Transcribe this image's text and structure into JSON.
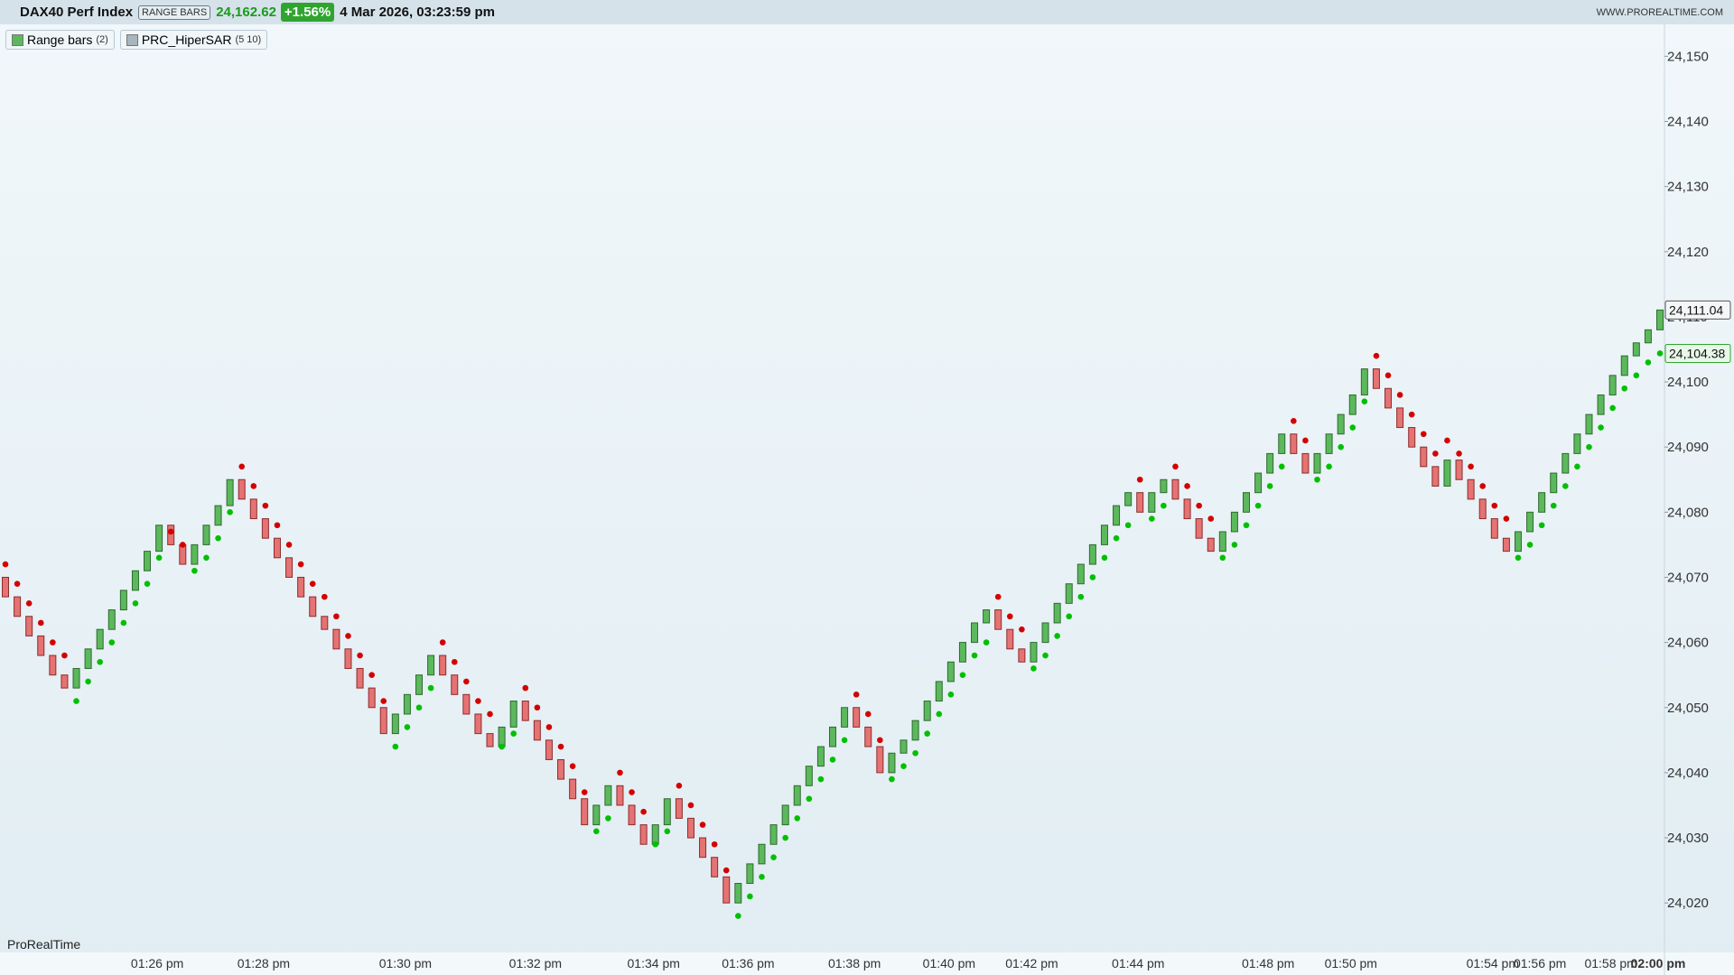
{
  "chart_data": {
    "type": "candlestick",
    "title": "DAX40 Perf Index",
    "chart_mode": "RANGE BARS",
    "last": {
      "value": 24162.62,
      "label": "24,162.62"
    },
    "change": {
      "value": 1.56,
      "label": "+1.56%"
    },
    "datetime": "4 Mar 2026, 03:23:59 pm",
    "source": "WWW.PROREALTIME.COM",
    "branding": "ProRealTime",
    "ylim": [
      24012.4,
      24154.9
    ],
    "yticks": [
      {
        "value": 24020,
        "label": "24,020"
      },
      {
        "value": 24030,
        "label": "24,030"
      },
      {
        "value": 24040,
        "label": "24,040"
      },
      {
        "value": 24050,
        "label": "24,050"
      },
      {
        "value": 24060,
        "label": "24,060"
      },
      {
        "value": 24070,
        "label": "24,070"
      },
      {
        "value": 24080,
        "label": "24,080"
      },
      {
        "value": 24090,
        "label": "24,090"
      },
      {
        "value": 24100,
        "label": "24,100"
      },
      {
        "value": 24110,
        "label": "24,110"
      },
      {
        "value": 24120,
        "label": "24,120"
      },
      {
        "value": 24130,
        "label": "24,130"
      },
      {
        "value": 24140,
        "label": "24,140"
      },
      {
        "value": 24150,
        "label": "24,150"
      }
    ],
    "categories": [
      null,
      null,
      null,
      null,
      null,
      null,
      null,
      null,
      null,
      null,
      null,
      null,
      null,
      "01:26 pm",
      null,
      null,
      null,
      null,
      null,
      null,
      null,
      null,
      "01:28 pm",
      null,
      null,
      null,
      null,
      null,
      null,
      null,
      null,
      null,
      null,
      null,
      "01:30 pm",
      null,
      null,
      null,
      null,
      null,
      null,
      null,
      null,
      null,
      null,
      "01:32 pm",
      null,
      null,
      null,
      null,
      null,
      null,
      null,
      null,
      null,
      "01:34 pm",
      null,
      null,
      null,
      null,
      null,
      null,
      null,
      "01:36 pm",
      null,
      null,
      null,
      null,
      null,
      null,
      null,
      null,
      "01:38 pm",
      null,
      null,
      null,
      null,
      null,
      null,
      null,
      "01:40 pm",
      null,
      null,
      null,
      null,
      null,
      null,
      "01:42 pm",
      null,
      null,
      null,
      null,
      null,
      null,
      null,
      null,
      "01:44 pm",
      null,
      null,
      null,
      null,
      null,
      null,
      null,
      null,
      null,
      null,
      "01:48 pm",
      null,
      null,
      null,
      null,
      null,
      null,
      "01:50 pm",
      null,
      null,
      null,
      null,
      null,
      null,
      null,
      null,
      null,
      null,
      null,
      "01:54 pm",
      null,
      null,
      null,
      "01:56 pm",
      null,
      null,
      null,
      null,
      null,
      "01:58 pm",
      null,
      null,
      null,
      "02:00 pm"
    ],
    "series": [
      {
        "name": "Range bars",
        "params": "(2)",
        "up_color": "#5cb85c",
        "down_color": "#e57373",
        "open": [
          24070,
          24067,
          24064,
          24061,
          24058,
          24055,
          24053,
          24056,
          24059,
          24062,
          24065,
          24068,
          24071,
          24074,
          24078,
          24075,
          24072,
          24075,
          24078,
          24081,
          24085,
          24082,
          24079,
          24076,
          24073,
          24070,
          24067,
          24064,
          24062,
          24059,
          24056,
          24053,
          24050,
          24046,
          24049,
          24052,
          24055,
          24058,
          24055,
          24052,
          24049,
          24046,
          24044,
          24047,
          24051,
          24048,
          24045,
          24042,
          24039,
          24036,
          24032,
          24035,
          24038,
          24035,
          24032,
          24029,
          24032,
          24036,
          24033,
          24030,
          24027,
          24024,
          24020,
          24023,
          24026,
          24029,
          24032,
          24035,
          24038,
          24041,
          24044,
          24047,
          24050,
          24047,
          24044,
          24040,
          24043,
          24045,
          24048,
          24051,
          24054,
          24057,
          24060,
          24063,
          24065,
          24062,
          24059,
          24057,
          24060,
          24063,
          24066,
          24069,
          24072,
          24075,
          24078,
          24081,
          24083,
          24080,
          24083,
          24085,
          24082,
          24079,
          24076,
          24074,
          24077,
          24080,
          24083,
          24086,
          24089,
          24092,
          24089,
          24086,
          24089,
          24092,
          24095,
          24098,
          24102,
          24099,
          24096,
          24093,
          24090,
          24087,
          24084,
          24088,
          24085,
          24082,
          24079,
          24076,
          24074,
          24077,
          24080,
          24083,
          24086,
          24089,
          24092,
          24095,
          24098,
          24101,
          24104,
          24106,
          24108
        ],
        "close": [
          24067,
          24064,
          24061,
          24058,
          24055,
          24053,
          24056,
          24059,
          24062,
          24065,
          24068,
          24071,
          24074,
          24078,
          24075,
          24072,
          24075,
          24078,
          24081,
          24085,
          24082,
          24079,
          24076,
          24073,
          24070,
          24067,
          24064,
          24062,
          24059,
          24056,
          24053,
          24050,
          24046,
          24049,
          24052,
          24055,
          24058,
          24055,
          24052,
          24049,
          24046,
          24044,
          24047,
          24051,
          24048,
          24045,
          24042,
          24039,
          24036,
          24032,
          24035,
          24038,
          24035,
          24032,
          24029,
          24032,
          24036,
          24033,
          24030,
          24027,
          24024,
          24020,
          24023,
          24026,
          24029,
          24032,
          24035,
          24038,
          24041,
          24044,
          24047,
          24050,
          24047,
          24044,
          24040,
          24043,
          24045,
          24048,
          24051,
          24054,
          24057,
          24060,
          24063,
          24065,
          24062,
          24059,
          24057,
          24060,
          24063,
          24066,
          24069,
          24072,
          24075,
          24078,
          24081,
          24083,
          24080,
          24083,
          24085,
          24082,
          24079,
          24076,
          24074,
          24077,
          24080,
          24083,
          24086,
          24089,
          24092,
          24089,
          24086,
          24089,
          24092,
          24095,
          24098,
          24102,
          24099,
          24096,
          24093,
          24090,
          24087,
          24084,
          24088,
          24085,
          24082,
          24079,
          24076,
          24074,
          24077,
          24080,
          24083,
          24086,
          24089,
          24092,
          24095,
          24098,
          24101,
          24104,
          24106,
          24108,
          24111.04
        ]
      },
      {
        "name": "PRC_HiperSAR",
        "params": "(5 10)",
        "up_color": "#00c000",
        "down_color": "#d40000",
        "values": [
          24072,
          24069,
          24066,
          24063,
          24060,
          24058,
          24051,
          24054,
          24057,
          24060,
          24063,
          24066,
          24069,
          24073,
          24077,
          24075,
          24071,
          24073,
          24076,
          24080,
          24087,
          24084,
          24081,
          24078,
          24075,
          24072,
          24069,
          24067,
          24064,
          24061,
          24058,
          24055,
          24051,
          24044,
          24047,
          24050,
          24053,
          24060,
          24057,
          24054,
          24051,
          24049,
          24044,
          24046,
          24053,
          24050,
          24047,
          24044,
          24041,
          24037,
          24031,
          24033,
          24040,
          24037,
          24034,
          24029,
          24031,
          24038,
          24035,
          24032,
          24029,
          24025,
          24018,
          24021,
          24024,
          24027,
          24030,
          24033,
          24036,
          24039,
          24042,
          24045,
          24052,
          24049,
          24045,
          24039,
          24041,
          24043,
          24046,
          24049,
          24052,
          24055,
          24058,
          24060,
          24067,
          24064,
          24062,
          24056,
          24058,
          24061,
          24064,
          24067,
          24070,
          24073,
          24076,
          24078,
          24085,
          24079,
          24081,
          24087,
          24084,
          24081,
          24079,
          24073,
          24075,
          24078,
          24081,
          24084,
          24087,
          24094,
          24091,
          24085,
          24087,
          24090,
          24093,
          24097,
          24104,
          24101,
          24098,
          24095,
          24092,
          24089,
          24091,
          24089,
          24087,
          24084,
          24081,
          24079,
          24073,
          24075,
          24078,
          24081,
          24084,
          24087,
          24090,
          24093,
          24096,
          24099,
          24101,
          24103,
          24104.38
        ]
      }
    ],
    "last_price_tag": {
      "value": 24111.04,
      "label": "24,111.04"
    },
    "last_sar_tag": {
      "value": 24104.38,
      "label": "24,104.38"
    }
  }
}
